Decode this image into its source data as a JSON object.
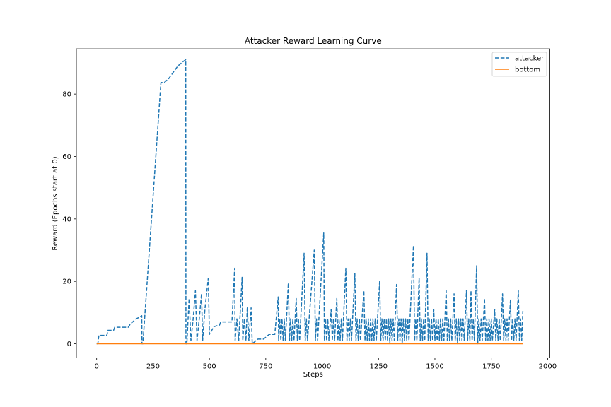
{
  "chart_data": {
    "type": "line",
    "title": "Attacker Reward Learning Curve",
    "xlabel": "Steps",
    "ylabel": "Reward (Epochs start at 0)",
    "xlim": [
      -90,
      2010
    ],
    "ylim": [
      -4.5,
      94.5
    ],
    "xticks": [
      0,
      250,
      500,
      750,
      1000,
      1250,
      1500,
      1750,
      2000
    ],
    "yticks": [
      0,
      20,
      40,
      60,
      80
    ],
    "grid": false,
    "legend": "top-right",
    "series": [
      {
        "name": "attacker",
        "color": "#1f77b4",
        "style": "dashed",
        "points": [
          [
            0,
            0
          ],
          [
            5,
            0
          ],
          [
            10,
            2.7
          ],
          [
            20,
            2.7
          ],
          [
            45,
            2.7
          ],
          [
            50,
            4.3
          ],
          [
            75,
            4.3
          ],
          [
            80,
            5.3
          ],
          [
            140,
            5.3
          ],
          [
            150,
            6.4
          ],
          [
            160,
            7
          ],
          [
            175,
            8
          ],
          [
            190,
            8.5
          ],
          [
            200,
            9
          ],
          [
            201,
            0
          ],
          [
            205,
            0
          ],
          [
            285,
            83.7
          ],
          [
            300,
            83.7
          ],
          [
            320,
            85
          ],
          [
            340,
            87
          ],
          [
            360,
            89
          ],
          [
            385,
            90.5
          ],
          [
            395,
            91
          ],
          [
            396,
            0
          ],
          [
            400,
            0
          ],
          [
            410,
            14.5
          ],
          [
            418,
            1
          ],
          [
            428,
            8
          ],
          [
            438,
            17
          ],
          [
            445,
            1
          ],
          [
            455,
            8
          ],
          [
            465,
            16
          ],
          [
            470,
            1
          ],
          [
            480,
            11
          ],
          [
            495,
            21
          ],
          [
            500,
            3
          ],
          [
            520,
            5.5
          ],
          [
            545,
            6
          ],
          [
            550,
            7
          ],
          [
            590,
            7
          ],
          [
            600,
            7
          ],
          [
            612,
            24.2
          ],
          [
            614,
            1
          ],
          [
            622,
            8
          ],
          [
            630,
            1
          ],
          [
            645,
            21.3
          ],
          [
            648,
            1
          ],
          [
            655,
            8
          ],
          [
            662,
            1
          ],
          [
            668,
            11.5
          ],
          [
            675,
            1
          ],
          [
            685,
            11.5
          ],
          [
            690,
            0
          ],
          [
            715,
            1.5
          ],
          [
            740,
            1.5
          ],
          [
            765,
            3
          ],
          [
            790,
            3
          ],
          [
            805,
            15
          ],
          [
            807,
            1
          ],
          [
            812,
            8
          ],
          [
            817,
            1
          ],
          [
            822,
            8
          ],
          [
            827,
            1
          ],
          [
            832,
            8
          ],
          [
            837,
            1
          ],
          [
            850,
            19.5
          ],
          [
            855,
            1
          ],
          [
            860,
            8
          ],
          [
            865,
            1
          ],
          [
            870,
            8
          ],
          [
            875,
            1
          ],
          [
            885,
            14.5
          ],
          [
            890,
            1
          ],
          [
            895,
            8
          ],
          [
            900,
            1
          ],
          [
            920,
            29
          ],
          [
            925,
            1
          ],
          [
            930,
            8
          ],
          [
            935,
            1
          ],
          [
            965,
            30
          ],
          [
            970,
            1
          ],
          [
            975,
            8
          ],
          [
            980,
            1
          ],
          [
            1007,
            35.5
          ],
          [
            1010,
            1
          ],
          [
            1015,
            8
          ],
          [
            1020,
            1
          ],
          [
            1025,
            8
          ],
          [
            1030,
            1
          ],
          [
            1040,
            11
          ],
          [
            1045,
            1
          ],
          [
            1050,
            8
          ],
          [
            1055,
            1
          ],
          [
            1065,
            14.5
          ],
          [
            1070,
            1
          ],
          [
            1075,
            8
          ],
          [
            1080,
            1
          ],
          [
            1085,
            8
          ],
          [
            1090,
            1
          ],
          [
            1105,
            24.2
          ],
          [
            1110,
            1
          ],
          [
            1115,
            8
          ],
          [
            1120,
            1
          ],
          [
            1125,
            8
          ],
          [
            1130,
            1
          ],
          [
            1145,
            22.5
          ],
          [
            1150,
            1
          ],
          [
            1155,
            8
          ],
          [
            1160,
            1
          ],
          [
            1165,
            8
          ],
          [
            1170,
            1
          ],
          [
            1185,
            17
          ],
          [
            1190,
            1
          ],
          [
            1195,
            8
          ],
          [
            1200,
            1
          ],
          [
            1205,
            8
          ],
          [
            1210,
            1
          ],
          [
            1215,
            8
          ],
          [
            1220,
            1
          ],
          [
            1225,
            8
          ],
          [
            1230,
            1
          ],
          [
            1235,
            8
          ],
          [
            1240,
            1
          ],
          [
            1255,
            20
          ],
          [
            1260,
            1
          ],
          [
            1265,
            8
          ],
          [
            1270,
            1
          ],
          [
            1275,
            8
          ],
          [
            1280,
            1
          ],
          [
            1285,
            8
          ],
          [
            1290,
            1
          ],
          [
            1295,
            8
          ],
          [
            1300,
            0
          ],
          [
            1305,
            8
          ],
          [
            1310,
            1
          ],
          [
            1315,
            8
          ],
          [
            1320,
            1
          ],
          [
            1330,
            19
          ],
          [
            1335,
            1
          ],
          [
            1340,
            8
          ],
          [
            1345,
            1
          ],
          [
            1350,
            8
          ],
          [
            1355,
            0
          ],
          [
            1360,
            8
          ],
          [
            1365,
            1
          ],
          [
            1370,
            8
          ],
          [
            1375,
            1
          ],
          [
            1380,
            8
          ],
          [
            1385,
            1
          ],
          [
            1405,
            31.5
          ],
          [
            1410,
            1
          ],
          [
            1415,
            8
          ],
          [
            1420,
            1
          ],
          [
            1430,
            21
          ],
          [
            1435,
            1
          ],
          [
            1440,
            8
          ],
          [
            1445,
            1
          ],
          [
            1450,
            8
          ],
          [
            1455,
            1
          ],
          [
            1465,
            29
          ],
          [
            1470,
            1
          ],
          [
            1475,
            8
          ],
          [
            1480,
            1
          ],
          [
            1485,
            8
          ],
          [
            1490,
            1
          ],
          [
            1495,
            11
          ],
          [
            1500,
            1
          ],
          [
            1505,
            8
          ],
          [
            1510,
            1
          ],
          [
            1515,
            8
          ],
          [
            1520,
            1
          ],
          [
            1525,
            8
          ],
          [
            1530,
            1
          ],
          [
            1535,
            8
          ],
          [
            1540,
            1
          ],
          [
            1550,
            17
          ],
          [
            1555,
            1
          ],
          [
            1560,
            8
          ],
          [
            1565,
            1
          ],
          [
            1570,
            8
          ],
          [
            1575,
            1
          ],
          [
            1585,
            16
          ],
          [
            1590,
            1
          ],
          [
            1595,
            8
          ],
          [
            1600,
            0
          ],
          [
            1605,
            8
          ],
          [
            1610,
            1
          ],
          [
            1615,
            8
          ],
          [
            1620,
            1
          ],
          [
            1625,
            8
          ],
          [
            1630,
            1
          ],
          [
            1640,
            17
          ],
          [
            1645,
            1
          ],
          [
            1650,
            8
          ],
          [
            1655,
            1
          ],
          [
            1660,
            17
          ],
          [
            1665,
            1
          ],
          [
            1670,
            8
          ],
          [
            1675,
            1
          ],
          [
            1685,
            25
          ],
          [
            1690,
            0
          ],
          [
            1695,
            8
          ],
          [
            1700,
            1
          ],
          [
            1705,
            8
          ],
          [
            1710,
            1
          ],
          [
            1720,
            14.5
          ],
          [
            1725,
            1
          ],
          [
            1730,
            8
          ],
          [
            1735,
            1
          ],
          [
            1740,
            8
          ],
          [
            1745,
            1
          ],
          [
            1750,
            8
          ],
          [
            1755,
            1
          ],
          [
            1765,
            11
          ],
          [
            1770,
            1
          ],
          [
            1775,
            8
          ],
          [
            1780,
            1
          ],
          [
            1785,
            8
          ],
          [
            1790,
            1
          ],
          [
            1800,
            16
          ],
          [
            1805,
            1
          ],
          [
            1810,
            8
          ],
          [
            1815,
            1
          ],
          [
            1820,
            8
          ],
          [
            1825,
            1
          ],
          [
            1835,
            14
          ],
          [
            1840,
            1
          ],
          [
            1845,
            8
          ],
          [
            1850,
            1
          ],
          [
            1855,
            8
          ],
          [
            1860,
            1
          ],
          [
            1870,
            17
          ],
          [
            1875,
            1
          ],
          [
            1880,
            8
          ],
          [
            1885,
            1
          ],
          [
            1890,
            10.5
          ]
        ]
      },
      {
        "name": "bottom",
        "color": "#ff7f0e",
        "style": "solid",
        "points": [
          [
            0,
            0
          ],
          [
            1890,
            0
          ]
        ]
      }
    ]
  }
}
